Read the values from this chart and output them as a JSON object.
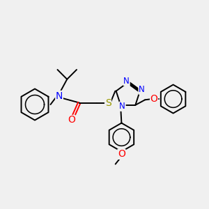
{
  "bg_color": "#f0f0f0",
  "atom_colors": {
    "N": "#0000FF",
    "O": "#FF0000",
    "S": "#999900",
    "C": "#000000"
  },
  "bond_color": "#000000",
  "bond_width": 1.4,
  "font_size": 8.5,
  "figsize": [
    3.0,
    3.0
  ],
  "dpi": 100
}
